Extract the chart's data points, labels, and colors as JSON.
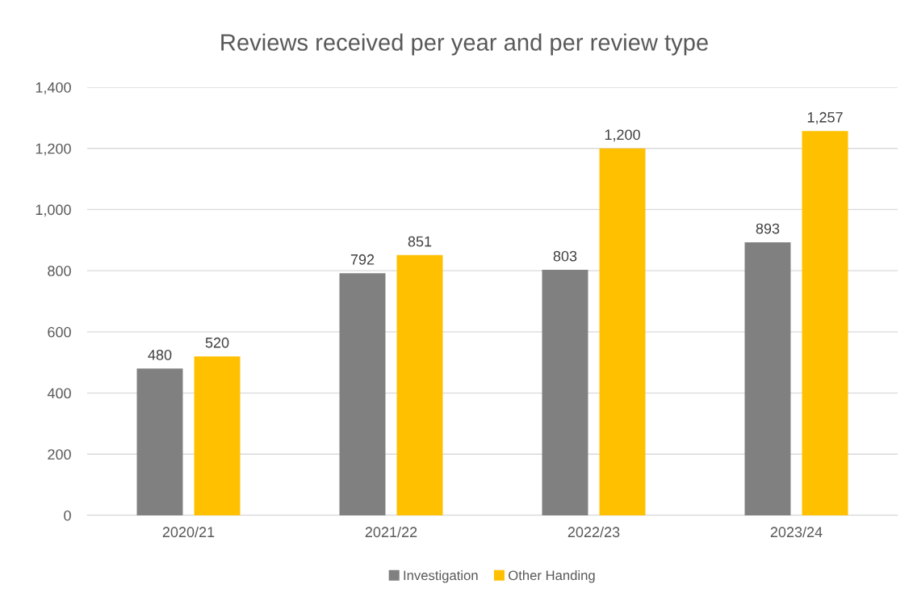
{
  "chart_data": {
    "type": "bar",
    "title": "Reviews received per year and per review type",
    "categories": [
      "2020/21",
      "2021/22",
      "2022/23",
      "2023/24"
    ],
    "series": [
      {
        "name": "Investigation",
        "color": "#808080",
        "values": [
          480,
          792,
          803,
          893
        ],
        "value_labels": [
          "480",
          "792",
          "803",
          "893"
        ]
      },
      {
        "name": "Other Handing",
        "color": "#ffc000",
        "values": [
          520,
          851,
          1200,
          1257
        ],
        "value_labels": [
          "520",
          "851",
          "1,200",
          "1,257"
        ]
      }
    ],
    "ylim": [
      0,
      1400
    ],
    "yticks": [
      0,
      200,
      400,
      600,
      800,
      {
        "value": 1000,
        "label": "1,000"
      },
      {
        "value": 1200,
        "label": "1,200"
      },
      {
        "value": 1400,
        "label": "1,400"
      }
    ],
    "grid": "y",
    "legend": "bottom"
  }
}
